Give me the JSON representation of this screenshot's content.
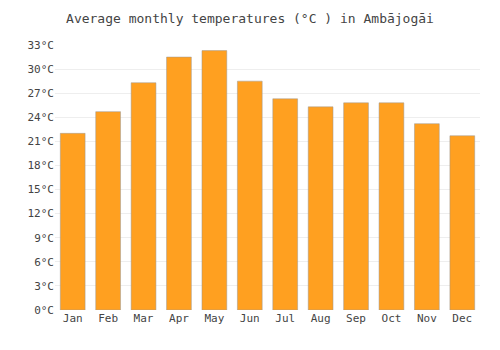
{
  "chart_data": {
    "type": "bar",
    "title": "Average monthly temperatures (°C ) in Ambājogāi",
    "categories": [
      "Jan",
      "Feb",
      "Mar",
      "Apr",
      "May",
      "Jun",
      "Jul",
      "Aug",
      "Sep",
      "Oct",
      "Nov",
      "Dec"
    ],
    "values": [
      22.0,
      24.7,
      28.3,
      31.5,
      32.3,
      28.5,
      26.3,
      25.3,
      25.8,
      25.8,
      23.2,
      21.7
    ],
    "color": "#FFA020",
    "ylim": [
      0,
      33
    ],
    "yticks": [
      {
        "value": 0,
        "label": "0°C"
      },
      {
        "value": 3,
        "label": "3°C"
      },
      {
        "value": 6,
        "label": "6°C"
      },
      {
        "value": 9,
        "label": "9°C"
      },
      {
        "value": 12,
        "label": "12°C"
      },
      {
        "value": 15,
        "label": "15°C"
      },
      {
        "value": 18,
        "label": "18°C"
      },
      {
        "value": 21,
        "label": "21°C"
      },
      {
        "value": 24,
        "label": "24°C"
      },
      {
        "value": 27,
        "label": "27°C"
      },
      {
        "value": 30,
        "label": "30°C"
      },
      {
        "value": 33,
        "label": "33°C"
      }
    ],
    "grid": true
  }
}
